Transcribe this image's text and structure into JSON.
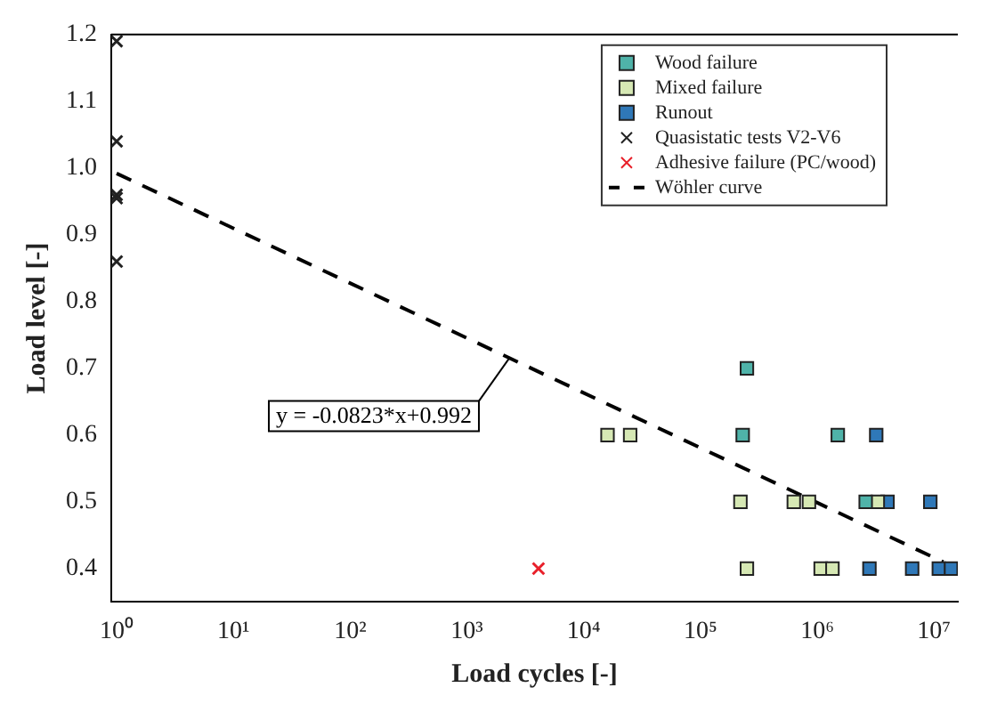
{
  "chart_data": {
    "type": "scatter",
    "xlabel": "Load cycles [-]",
    "ylabel": "Load level [-]",
    "log": "x",
    "grid": false,
    "legend": "top right",
    "xlim": [
      0.9,
      16000000
    ],
    "ylim": [
      0.35,
      1.2
    ],
    "xticks": [
      {
        "value": 1,
        "label": "10⁰"
      },
      {
        "value": 10,
        "label": "10¹"
      },
      {
        "value": 100,
        "label": "10²"
      },
      {
        "value": 1000,
        "label": "10³"
      },
      {
        "value": 10000,
        "label": "10⁴"
      },
      {
        "value": 100000,
        "label": "10⁵"
      },
      {
        "value": 1000000,
        "label": "10⁶"
      },
      {
        "value": 10000000,
        "label": "10⁷"
      }
    ],
    "yticks": [
      0.4,
      0.5,
      0.6,
      0.7,
      0.8,
      0.9,
      {
        "value": 1,
        "label": "1.0"
      },
      1.1,
      1.2
    ],
    "annotations": [
      {
        "text": "y = -0.0823*x+0.992",
        "x": 2300,
        "y": 0.715
      }
    ],
    "series": [
      {
        "name": "Wood failure",
        "color": "#4fb3a9",
        "marker": "square",
        "x": [
          250000,
          230000,
          1500000,
          2600000
        ],
        "values": [
          0.7,
          0.6,
          0.6,
          0.5
        ]
      },
      {
        "name": "Mixed failure",
        "color": "#d6e8b4",
        "marker": "square",
        "x": [
          16000,
          25000,
          220000,
          630000,
          850000,
          3300000,
          250000,
          1070000,
          1350000
        ],
        "values": [
          0.6,
          0.6,
          0.5,
          0.5,
          0.5,
          0.5,
          0.4,
          0.4,
          0.4
        ]
      },
      {
        "name": "Runout",
        "color": "#2f78b8",
        "marker": "square",
        "x": [
          3200000,
          4000000,
          9300000,
          2800000,
          6500000,
          11000000,
          14000000
        ],
        "values": [
          0.6,
          0.5,
          0.5,
          0.4,
          0.4,
          0.4,
          0.4
        ]
      },
      {
        "name": "Quasistatic tests V2-V6",
        "color": "#222222",
        "marker": "cross",
        "x": [
          1,
          1,
          1,
          1,
          1
        ],
        "values": [
          1.19,
          1.04,
          0.96,
          0.955,
          0.86
        ]
      },
      {
        "name": "Adhesive failure (PC/wood)",
        "color": "#e8202a",
        "marker": "cross",
        "x": [
          4100
        ],
        "values": [
          0.4
        ]
      },
      {
        "name": "Wöhler curve",
        "type": "line",
        "color": "#000000",
        "marker": "none",
        "line_style": "dashed",
        "x": [
          1,
          12000000
        ],
        "values": [
          0.992,
          0.41
        ]
      }
    ]
  }
}
